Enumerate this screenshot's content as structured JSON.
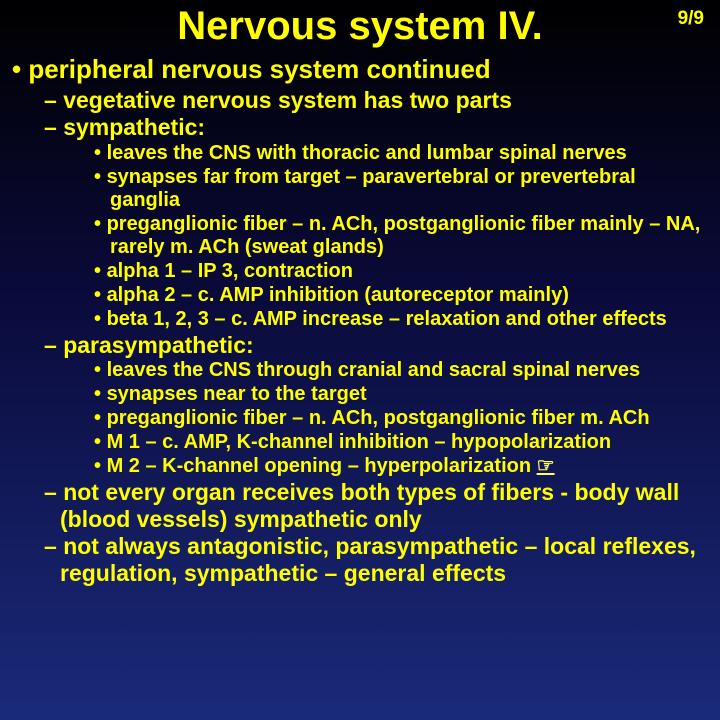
{
  "page_number": "9/9",
  "title": "Nervous system IV.",
  "l1_heading": "peripheral nervous system continued",
  "level2": {
    "a": "vegetative nervous system has two parts",
    "b": "sympathetic:",
    "c": "parasympathetic:",
    "d": "not every organ receives both types of fibers - body wall (blood vessels) sympathetic only",
    "e": "not always antagonistic, parasympathetic – local reflexes, regulation, sympathetic – general effects"
  },
  "sympathetic": {
    "s1": "leaves the CNS with thoracic and lumbar spinal nerves",
    "s2": "synapses far from target – paravertebral or prevertebral ganglia",
    "s3": "preganglionic fiber – n. ACh, postganglionic fiber mainly – NA, rarely m. ACh (sweat glands)",
    "s4": "alpha 1 – IP 3, contraction",
    "s5": "alpha 2 – c. AMP inhibition (autoreceptor mainly)",
    "s6": "beta 1, 2, 3 – c. AMP increase – relaxation and other effects"
  },
  "parasympathetic": {
    "p1": "leaves the CNS through cranial and sacral spinal nerves",
    "p2": "synapses near to the target",
    "p3": "preganglionic fiber – n. ACh, postganglionic fiber m. ACh",
    "p4": "M 1 – c. AMP, K-channel inhibition – hypopolarization",
    "p5_prefix": "M 2 – K-channel opening – hyperpolarization ",
    "p5_link": "☞"
  },
  "colors": {
    "text": "#ffff00",
    "bg_top": "#000000",
    "bg_bottom": "#1a2a7a"
  }
}
